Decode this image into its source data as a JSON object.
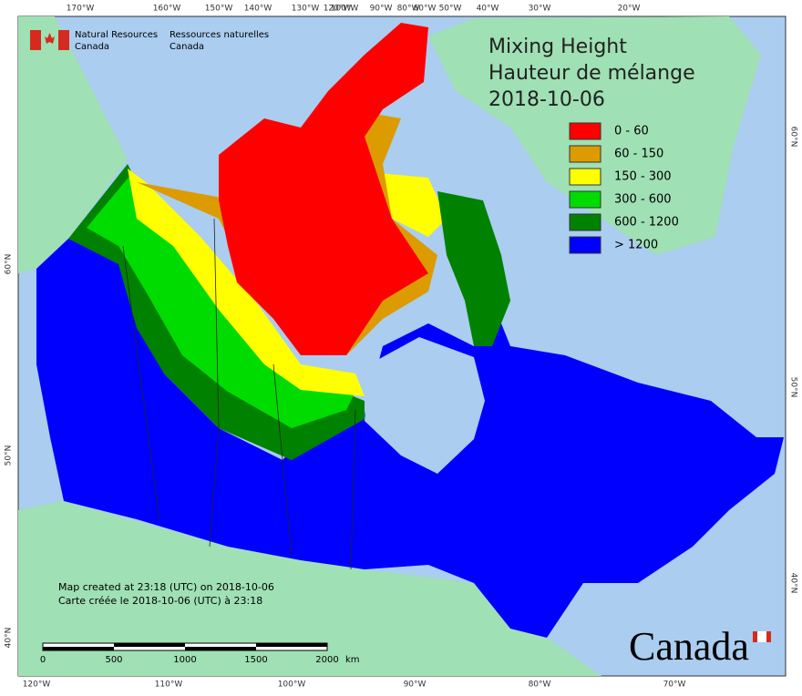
{
  "header": {
    "agency_en": [
      "Natural Resources",
      "Canada"
    ],
    "agency_fr": [
      "Ressources naturelles",
      "Canada"
    ]
  },
  "title": [
    "Mixing Height",
    "Hauteur de mélange",
    "2018-10-06"
  ],
  "legend": [
    {
      "label": "0 - 60",
      "color": "#ff0000"
    },
    {
      "label": "60 - 150",
      "color": "#dc9b00"
    },
    {
      "label": "150 - 300",
      "color": "#ffff00"
    },
    {
      "label": "300 - 600",
      "color": "#00dc00"
    },
    {
      "label": "600 - 1200",
      "color": "#008200"
    },
    {
      "label": "> 1200",
      "color": "#0000ff"
    }
  ],
  "graticule": {
    "top": [
      "170°W",
      "160°W",
      "150°W",
      "140°W",
      "130°W",
      "120°W",
      "100°W",
      "90°W",
      "80°W",
      "60°W",
      "50°W",
      "40°W",
      "30°W",
      "20°W"
    ],
    "bottom": [
      "120°W",
      "110°W",
      "100°W",
      "90°W",
      "80°W",
      "70°W"
    ],
    "left": [
      "60°N",
      "50°N",
      "40°N"
    ],
    "right": [
      "60°N",
      "50°N",
      "40°N"
    ]
  },
  "footer": [
    "Map created at 23:18 (UTC) on 2018-10-06",
    "Carte créée le 2018-10-06 (UTC) à 23:18"
  ],
  "scale_bar": {
    "labels": [
      "0",
      "500",
      "1000",
      "1500",
      "2000"
    ],
    "unit": "km"
  },
  "wordmark": "Canada"
}
